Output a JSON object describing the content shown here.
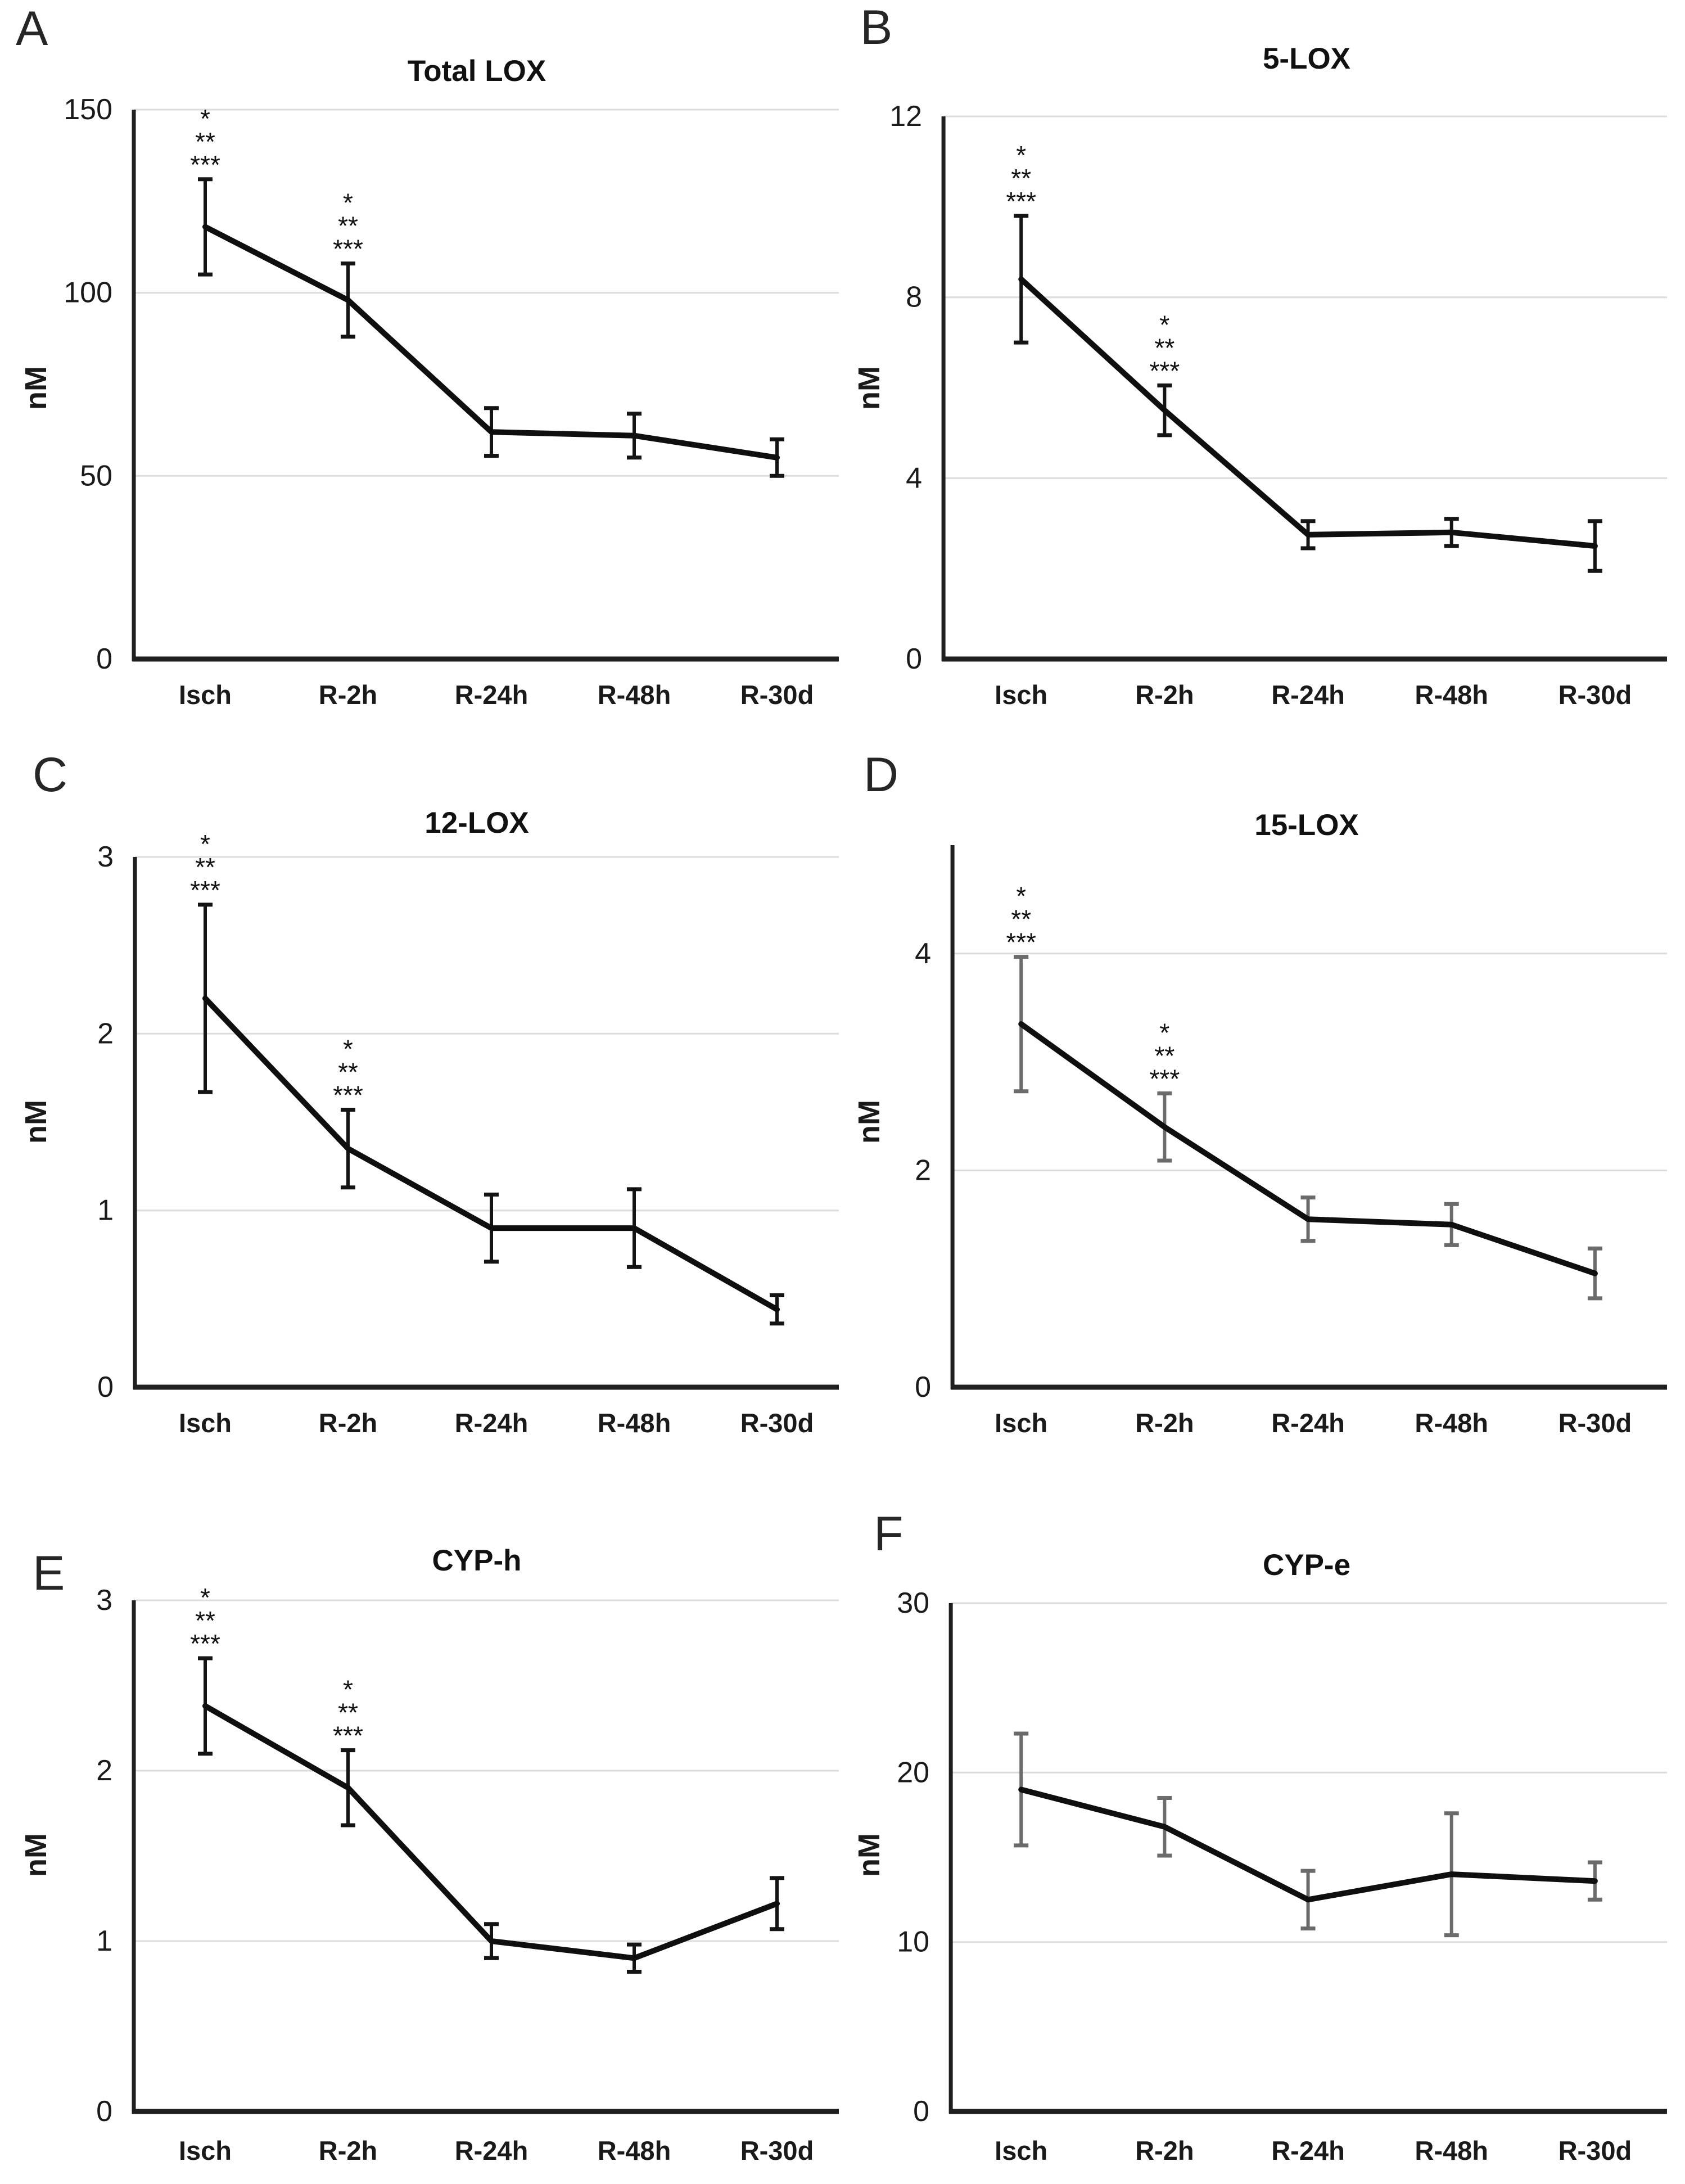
{
  "figure_meta": {
    "background": "#ffffff",
    "grid_color": "#dcdcdc",
    "axis_color": "#1f1f1f",
    "text_color": "#1a1a1a",
    "x_axis_categories": [
      "Isch",
      "R-2h",
      "R-24h",
      "R-48h",
      "R-30d"
    ],
    "y_axis_label": "nM",
    "significance_legend_symbols": [
      "*",
      "**",
      "***"
    ]
  },
  "chart_data": [
    {
      "panel": "A",
      "type": "line",
      "title": "Total LOX",
      "xlabel": "",
      "ylabel": "nM",
      "categories": [
        "Isch",
        "R-2h",
        "R-24h",
        "R-48h",
        "R-30d"
      ],
      "values": [
        118,
        98,
        62,
        61,
        55
      ],
      "error_bars": [
        13,
        10,
        6.5,
        6,
        5
      ],
      "ylim": [
        0,
        150
      ],
      "y_ticks": [
        0,
        50,
        100,
        150
      ],
      "grid": true,
      "legend": "none",
      "line_color": "#0f0f0f",
      "error_bar_color": "#141414",
      "significance": [
        {
          "category": "Isch",
          "labels": [
            "*",
            "**",
            "***"
          ]
        },
        {
          "category": "R-2h",
          "labels": [
            "*",
            "**",
            "***"
          ]
        }
      ]
    },
    {
      "panel": "B",
      "type": "line",
      "title": "5-LOX",
      "xlabel": "",
      "ylabel": "nM",
      "categories": [
        "Isch",
        "R-2h",
        "R-24h",
        "R-48h",
        "R-30d"
      ],
      "values": [
        8.4,
        5.5,
        2.75,
        2.8,
        2.5
      ],
      "error_bars": [
        1.4,
        0.55,
        0.3,
        0.3,
        0.55
      ],
      "ylim": [
        0,
        12
      ],
      "y_ticks": [
        0,
        4,
        8,
        12
      ],
      "grid": true,
      "legend": "none",
      "line_color": "#0f0f0f",
      "error_bar_color": "#141414",
      "significance": [
        {
          "category": "Isch",
          "labels": [
            "*",
            "**",
            "***"
          ]
        },
        {
          "category": "R-2h",
          "labels": [
            "*",
            "**",
            "***"
          ]
        }
      ]
    },
    {
      "panel": "C",
      "type": "line",
      "title": "12-LOX",
      "xlabel": "",
      "ylabel": "nM",
      "categories": [
        "Isch",
        "R-2h",
        "R-24h",
        "R-48h",
        "R-30d"
      ],
      "values": [
        2.2,
        1.35,
        0.9,
        0.9,
        0.44
      ],
      "error_bars": [
        0.53,
        0.22,
        0.19,
        0.22,
        0.08
      ],
      "ylim": [
        0,
        3
      ],
      "y_ticks": [
        0,
        1,
        2,
        3
      ],
      "grid": true,
      "legend": "none",
      "line_color": "#0f0f0f",
      "error_bar_color": "#141414",
      "significance": [
        {
          "category": "Isch",
          "labels": [
            "*",
            "**",
            "***"
          ]
        },
        {
          "category": "R-2h",
          "labels": [
            "*",
            "**",
            "***"
          ]
        }
      ]
    },
    {
      "panel": "D",
      "type": "line",
      "title": "15-LOX",
      "xlabel": "",
      "ylabel": "nM",
      "categories": [
        "Isch",
        "R-2h",
        "R-24h",
        "R-48h",
        "R-30d"
      ],
      "values": [
        3.35,
        2.4,
        1.55,
        1.5,
        1.05
      ],
      "error_bars": [
        0.62,
        0.31,
        0.2,
        0.19,
        0.23
      ],
      "ylim": [
        0,
        5
      ],
      "y_ticks": [
        0,
        2,
        4
      ],
      "grid": true,
      "legend": "none",
      "line_color": "#0f0f0f",
      "error_bar_color": "#6b6b6b",
      "significance": [
        {
          "category": "Isch",
          "labels": [
            "*",
            "**",
            "***"
          ]
        },
        {
          "category": "R-2h",
          "labels": [
            "*",
            "**",
            "***"
          ]
        }
      ]
    },
    {
      "panel": "E",
      "type": "line",
      "title": "CYP-h",
      "xlabel": "",
      "ylabel": "nM",
      "categories": [
        "Isch",
        "R-2h",
        "R-24h",
        "R-48h",
        "R-30d"
      ],
      "values": [
        2.38,
        1.9,
        1.0,
        0.9,
        1.22
      ],
      "error_bars": [
        0.28,
        0.22,
        0.1,
        0.08,
        0.15
      ],
      "ylim": [
        0,
        3
      ],
      "y_ticks": [
        0,
        1,
        2,
        3
      ],
      "grid": true,
      "legend": "none",
      "line_color": "#0f0f0f",
      "error_bar_color": "#141414",
      "significance": [
        {
          "category": "Isch",
          "labels": [
            "*",
            "**",
            "***"
          ]
        },
        {
          "category": "R-2h",
          "labels": [
            "*",
            "**",
            "***"
          ]
        }
      ]
    },
    {
      "panel": "F",
      "type": "line",
      "title": "CYP-e",
      "xlabel": "",
      "ylabel": "nM",
      "categories": [
        "Isch",
        "R-2h",
        "R-24h",
        "R-48h",
        "R-30d"
      ],
      "values": [
        19,
        16.8,
        12.5,
        14,
        13.6
      ],
      "error_bars": [
        3.3,
        1.7,
        1.7,
        3.6,
        1.1
      ],
      "ylim": [
        0,
        30
      ],
      "y_ticks": [
        0,
        10,
        20,
        30
      ],
      "grid": true,
      "legend": "none",
      "line_color": "#0f0f0f",
      "error_bar_color": "#6b6b6b",
      "significance": []
    }
  ]
}
